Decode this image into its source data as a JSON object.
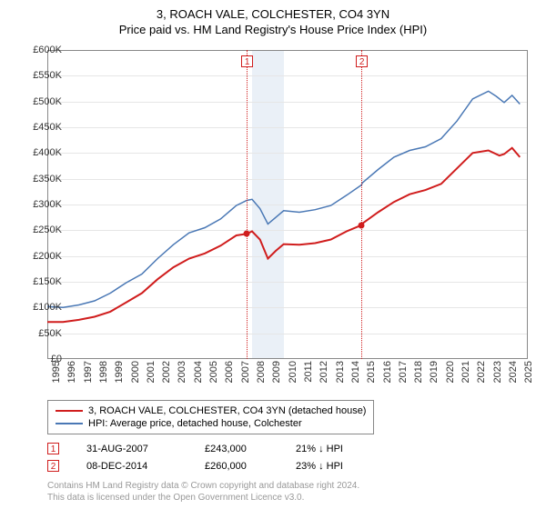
{
  "title_line1": "3, ROACH VALE, COLCHESTER, CO4 3YN",
  "title_line2": "Price paid vs. HM Land Registry's House Price Index (HPI)",
  "chart": {
    "type": "line",
    "background_color": "#ffffff",
    "grid_color": "#e6e6e6",
    "border_color": "#888888",
    "shade_color": "#eaf0f7",
    "x_years": [
      1995,
      1996,
      1997,
      1998,
      1999,
      2000,
      2001,
      2002,
      2003,
      2004,
      2005,
      2006,
      2007,
      2008,
      2009,
      2010,
      2011,
      2012,
      2013,
      2014,
      2015,
      2016,
      2017,
      2018,
      2019,
      2020,
      2021,
      2022,
      2023,
      2024,
      2025
    ],
    "x_range": [
      1995,
      2025.5
    ],
    "y_ticks": [
      0,
      50000,
      100000,
      150000,
      200000,
      250000,
      300000,
      350000,
      400000,
      450000,
      500000,
      550000,
      600000
    ],
    "y_tick_labels": [
      "£0",
      "£50K",
      "£100K",
      "£150K",
      "£200K",
      "£250K",
      "£300K",
      "£350K",
      "£400K",
      "£450K",
      "£500K",
      "£550K",
      "£600K"
    ],
    "y_range": [
      0,
      600000
    ],
    "shaded_bands": [
      [
        2008,
        2009
      ],
      [
        2009,
        2010
      ]
    ],
    "series": [
      {
        "name": "property",
        "label": "3, ROACH VALE, COLCHESTER, CO4 3YN (detached house)",
        "color": "#d01d1d",
        "width": 2,
        "points": [
          [
            1995,
            72000
          ],
          [
            1996,
            72000
          ],
          [
            1997,
            76000
          ],
          [
            1998,
            82000
          ],
          [
            1999,
            92000
          ],
          [
            2000,
            110000
          ],
          [
            2001,
            128000
          ],
          [
            2002,
            155000
          ],
          [
            2003,
            178000
          ],
          [
            2004,
            195000
          ],
          [
            2005,
            205000
          ],
          [
            2006,
            220000
          ],
          [
            2007,
            240000
          ],
          [
            2007.66,
            243000
          ],
          [
            2008,
            248000
          ],
          [
            2008.5,
            232000
          ],
          [
            2009,
            195000
          ],
          [
            2009.5,
            210000
          ],
          [
            2010,
            223000
          ],
          [
            2011,
            222000
          ],
          [
            2012,
            225000
          ],
          [
            2013,
            232000
          ],
          [
            2014,
            248000
          ],
          [
            2014.94,
            260000
          ],
          [
            2015,
            263000
          ],
          [
            2016,
            285000
          ],
          [
            2017,
            305000
          ],
          [
            2018,
            320000
          ],
          [
            2019,
            328000
          ],
          [
            2020,
            340000
          ],
          [
            2021,
            370000
          ],
          [
            2022,
            400000
          ],
          [
            2023,
            405000
          ],
          [
            2023.7,
            395000
          ],
          [
            2024,
            398000
          ],
          [
            2024.5,
            410000
          ],
          [
            2025,
            392000
          ]
        ]
      },
      {
        "name": "hpi",
        "label": "HPI: Average price, detached house, Colchester",
        "color": "#4a78b5",
        "width": 1.5,
        "points": [
          [
            1995,
            102000
          ],
          [
            1996,
            100000
          ],
          [
            1997,
            105000
          ],
          [
            1998,
            113000
          ],
          [
            1999,
            128000
          ],
          [
            2000,
            148000
          ],
          [
            2001,
            165000
          ],
          [
            2002,
            195000
          ],
          [
            2003,
            222000
          ],
          [
            2004,
            245000
          ],
          [
            2005,
            255000
          ],
          [
            2006,
            272000
          ],
          [
            2007,
            298000
          ],
          [
            2007.66,
            308000
          ],
          [
            2008,
            310000
          ],
          [
            2008.5,
            292000
          ],
          [
            2009,
            262000
          ],
          [
            2009.5,
            275000
          ],
          [
            2010,
            288000
          ],
          [
            2011,
            285000
          ],
          [
            2012,
            290000
          ],
          [
            2013,
            298000
          ],
          [
            2014,
            318000
          ],
          [
            2014.94,
            338000
          ],
          [
            2015,
            342000
          ],
          [
            2016,
            368000
          ],
          [
            2017,
            392000
          ],
          [
            2018,
            405000
          ],
          [
            2019,
            412000
          ],
          [
            2020,
            428000
          ],
          [
            2021,
            462000
          ],
          [
            2022,
            505000
          ],
          [
            2023,
            520000
          ],
          [
            2023.5,
            510000
          ],
          [
            2024,
            498000
          ],
          [
            2024.5,
            512000
          ],
          [
            2025,
            495000
          ]
        ]
      }
    ],
    "sale_markers": [
      {
        "n": "1",
        "year": 2007.66,
        "price": 243000
      },
      {
        "n": "2",
        "year": 2014.94,
        "price": 260000
      }
    ]
  },
  "legend": {
    "items": [
      {
        "color": "#d01d1d",
        "text": "3, ROACH VALE, COLCHESTER, CO4 3YN (detached house)"
      },
      {
        "color": "#4a78b5",
        "text": "HPI: Average price, detached house, Colchester"
      }
    ]
  },
  "sales": [
    {
      "n": "1",
      "date": "31-AUG-2007",
      "price": "£243,000",
      "diff": "21% ↓ HPI"
    },
    {
      "n": "2",
      "date": "08-DEC-2014",
      "price": "£260,000",
      "diff": "23% ↓ HPI"
    }
  ],
  "footer_line1": "Contains HM Land Registry data © Crown copyright and database right 2024.",
  "footer_line2": "This data is licensed under the Open Government Licence v3.0."
}
